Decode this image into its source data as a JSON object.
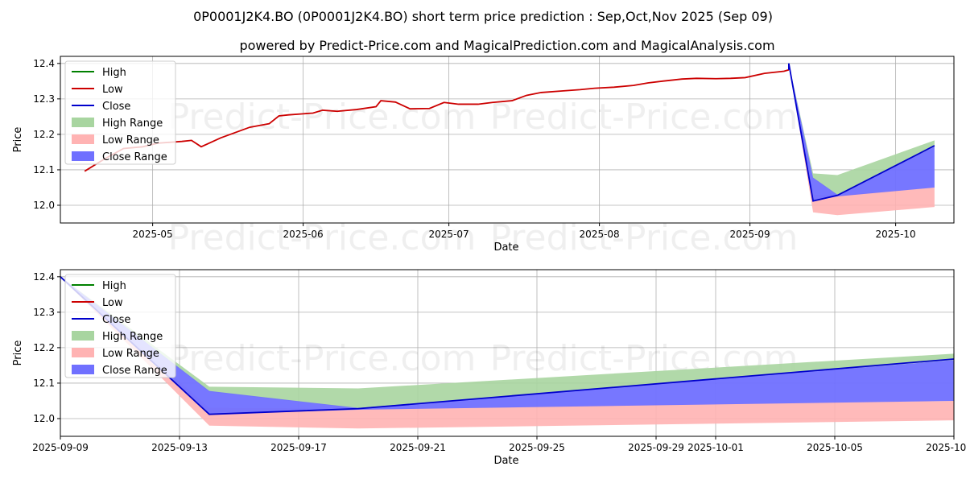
{
  "title": "0P0001J2K4.BO (0P0001J2K4.BO) short term price prediction : Sep,Oct,Nov 2025 (Sep 09)",
  "subtitle": "powered by Predict-Price.com and MagicalPrediction.com and MagicalAnalysis.com",
  "watermark": "Predict-Price.com",
  "colors": {
    "high": "#008000",
    "low": "#cc0000",
    "close": "#0000cc",
    "high_range": "#a8d5a0",
    "low_range": "#ffb3b3",
    "close_range": "#7070ff"
  },
  "legend": [
    "High",
    "Low",
    "Close",
    "High Range",
    "Low Range",
    "Close Range"
  ],
  "chart_data": [
    {
      "type": "line",
      "xlabel": "Date",
      "ylabel": "Price",
      "ylim": [
        11.95,
        12.42
      ],
      "xlim": [
        "2025-04-12",
        "2025-10-13"
      ],
      "yticks": [
        "12.0",
        "12.1",
        "12.2",
        "12.3",
        "12.4"
      ],
      "xticks": [
        {
          "date": "2025-05-01",
          "label": "2025-05"
        },
        {
          "date": "2025-06-01",
          "label": "2025-06"
        },
        {
          "date": "2025-07-01",
          "label": "2025-07"
        },
        {
          "date": "2025-08-01",
          "label": "2025-08"
        },
        {
          "date": "2025-09-01",
          "label": "2025-09"
        },
        {
          "date": "2025-10-01",
          "label": "2025-10"
        }
      ],
      "legend_position": "upper-left",
      "grid": true,
      "history": [
        [
          "2025-04-17",
          12.096
        ],
        [
          "2025-04-21",
          12.13
        ],
        [
          "2025-04-25",
          12.16
        ],
        [
          "2025-04-29",
          12.165
        ],
        [
          "2025-05-02",
          12.175
        ],
        [
          "2025-05-07",
          12.18
        ],
        [
          "2025-05-09",
          12.183
        ],
        [
          "2025-05-11",
          12.165
        ],
        [
          "2025-05-15",
          12.19
        ],
        [
          "2025-05-18",
          12.205
        ],
        [
          "2025-05-21",
          12.22
        ],
        [
          "2025-05-25",
          12.23
        ],
        [
          "2025-05-27",
          12.252
        ],
        [
          "2025-05-29",
          12.255
        ],
        [
          "2025-06-01",
          12.258
        ],
        [
          "2025-06-03",
          12.26
        ],
        [
          "2025-06-05",
          12.268
        ],
        [
          "2025-06-08",
          12.265
        ],
        [
          "2025-06-12",
          12.27
        ],
        [
          "2025-06-16",
          12.278
        ],
        [
          "2025-06-17",
          12.295
        ],
        [
          "2025-06-20",
          12.291
        ],
        [
          "2025-06-23",
          12.272
        ],
        [
          "2025-06-27",
          12.273
        ],
        [
          "2025-06-30",
          12.29
        ],
        [
          "2025-07-03",
          12.285
        ],
        [
          "2025-07-07",
          12.285
        ],
        [
          "2025-07-10",
          12.29
        ],
        [
          "2025-07-14",
          12.295
        ],
        [
          "2025-07-17",
          12.31
        ],
        [
          "2025-07-20",
          12.318
        ],
        [
          "2025-07-24",
          12.322
        ],
        [
          "2025-07-28",
          12.326
        ],
        [
          "2025-07-31",
          12.33
        ],
        [
          "2025-08-04",
          12.333
        ],
        [
          "2025-08-08",
          12.338
        ],
        [
          "2025-08-11",
          12.345
        ],
        [
          "2025-08-14",
          12.35
        ],
        [
          "2025-08-18",
          12.356
        ],
        [
          "2025-08-21",
          12.358
        ],
        [
          "2025-08-25",
          12.357
        ],
        [
          "2025-08-28",
          12.358
        ],
        [
          "2025-08-31",
          12.36
        ],
        [
          "2025-09-04",
          12.372
        ],
        [
          "2025-09-08",
          12.378
        ],
        [
          "2025-09-09",
          12.382
        ]
      ],
      "forecast_x": [
        "2025-09-09",
        "2025-09-14",
        "2025-09-19",
        "2025-10-09"
      ],
      "high_upper": [
        12.4,
        12.09,
        12.085,
        12.183
      ],
      "high_lower": [
        12.4,
        12.075,
        12.028,
        12.165
      ],
      "low_upper": [
        12.4,
        12.03,
        12.028,
        12.05
      ],
      "low_lower": [
        12.4,
        11.98,
        11.972,
        11.995
      ],
      "close_upper": [
        12.4,
        12.078,
        12.03,
        12.165
      ],
      "close_lower": [
        12.4,
        12.012,
        12.025,
        12.05
      ],
      "close": [
        12.4,
        12.012,
        12.028,
        12.168
      ]
    },
    {
      "type": "line",
      "xlabel": "Date",
      "ylabel": "Price",
      "ylim": [
        11.95,
        12.42
      ],
      "xlim": [
        "2025-09-09",
        "2025-10-09"
      ],
      "yticks": [
        "12.0",
        "12.1",
        "12.2",
        "12.3",
        "12.4"
      ],
      "xticks": [
        {
          "date": "2025-09-09",
          "label": "2025-09-09"
        },
        {
          "date": "2025-09-13",
          "label": "2025-09-13"
        },
        {
          "date": "2025-09-17",
          "label": "2025-09-17"
        },
        {
          "date": "2025-09-21",
          "label": "2025-09-21"
        },
        {
          "date": "2025-09-25",
          "label": "2025-09-25"
        },
        {
          "date": "2025-09-29",
          "label": "2025-09-29"
        },
        {
          "date": "2025-10-01",
          "label": "2025-10-01"
        },
        {
          "date": "2025-10-05",
          "label": "2025-10-05"
        },
        {
          "date": "2025-10-09",
          "label": "2025-10-09"
        }
      ],
      "legend_position": "upper-left",
      "grid": true,
      "history": [],
      "forecast_x": [
        "2025-09-09",
        "2025-09-14",
        "2025-09-19",
        "2025-10-09"
      ],
      "high_upper": [
        12.4,
        12.09,
        12.085,
        12.183
      ],
      "high_lower": [
        12.4,
        12.075,
        12.028,
        12.165
      ],
      "low_upper": [
        12.4,
        12.03,
        12.028,
        12.05
      ],
      "low_lower": [
        12.4,
        11.98,
        11.972,
        11.995
      ],
      "close_upper": [
        12.4,
        12.078,
        12.03,
        12.165
      ],
      "close_lower": [
        12.4,
        12.012,
        12.025,
        12.05
      ],
      "close": [
        12.4,
        12.012,
        12.028,
        12.168
      ]
    }
  ]
}
